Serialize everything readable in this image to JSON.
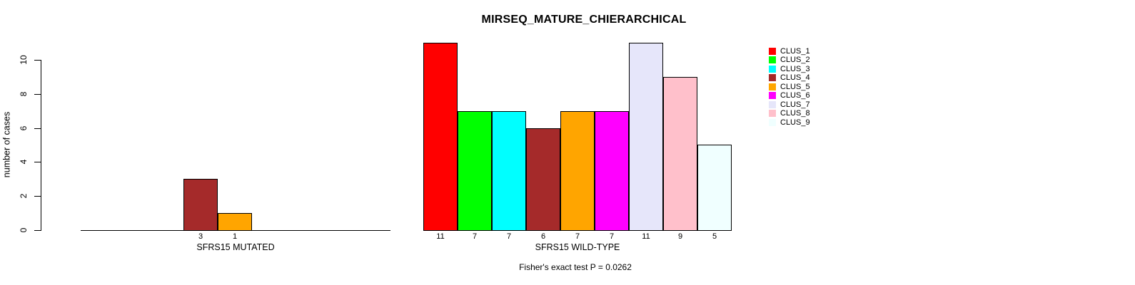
{
  "title": "MIRSEQ_MATURE_CHIERARCHICAL",
  "footnote": "Fisher's exact test P = 0.0262",
  "y_axis": {
    "label": "number of cases",
    "tick_labels": [
      "0",
      "2",
      "4",
      "6",
      "8",
      "10"
    ]
  },
  "panels": {
    "mutated_label": "SFRS15 MUTATED",
    "wildtype_label": "SFRS15 WILD-TYPE"
  },
  "chart_data": {
    "type": "bar",
    "title": "MIRSEQ_MATURE_CHIERARCHICAL",
    "ylabel": "number of cases",
    "ylim": [
      0,
      10
    ],
    "yticks": [
      0,
      2,
      4,
      6,
      8,
      10
    ],
    "grid": false,
    "legend_position": "right-outside",
    "bar_value_labels": true,
    "categories": [
      "CLUS_1",
      "CLUS_2",
      "CLUS_3",
      "CLUS_4",
      "CLUS_5",
      "CLUS_6",
      "CLUS_7",
      "CLUS_8",
      "CLUS_9"
    ],
    "colors": {
      "CLUS_1": "#FF0000",
      "CLUS_2": "#00FF00",
      "CLUS_3": "#00FFFF",
      "CLUS_4": "#A52A2A",
      "CLUS_5": "#FFA500",
      "CLUS_6": "#FF00FF",
      "CLUS_7": "#E6E6FA",
      "CLUS_8": "#FFC0CB",
      "CLUS_9": "#F0FFFF"
    },
    "series": [
      {
        "name": "SFRS15 MUTATED",
        "values": [
          0,
          0,
          0,
          3,
          1,
          0,
          0,
          0,
          0
        ]
      },
      {
        "name": "SFRS15 WILD-TYPE",
        "values": [
          11,
          7,
          7,
          6,
          7,
          7,
          11,
          9,
          5
        ]
      }
    ],
    "footnote": "Fisher's exact test P = 0.0262"
  }
}
